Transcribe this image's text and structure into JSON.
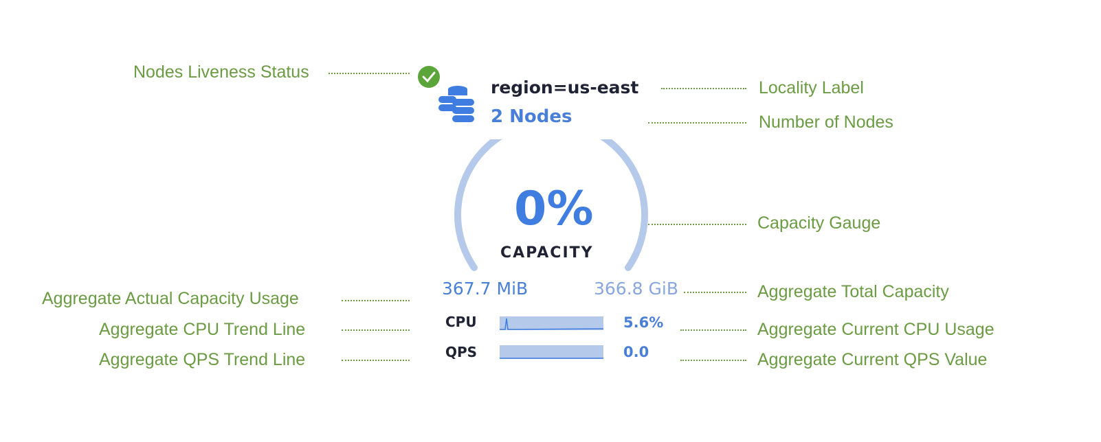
{
  "annotations": {
    "liveness": "Nodes Liveness Status",
    "locality": "Locality Label",
    "num_nodes": "Number of Nodes",
    "gauge": "Capacity Gauge",
    "actual_usage": "Aggregate Actual Capacity Usage",
    "total_capacity": "Aggregate Total Capacity",
    "cpu_trend": "Aggregate CPU Trend Line",
    "cpu_current": "Aggregate Current CPU Usage",
    "qps_trend": "Aggregate QPS Trend Line",
    "qps_current": "Aggregate Current QPS Value"
  },
  "locality": {
    "status_icon": "check-circle-icon",
    "status_color": "#5ba53a",
    "icon": "database-stack-icon",
    "label": "region=us-east",
    "nodes": "2 Nodes"
  },
  "capacity": {
    "percent": "0%",
    "percent_value": 0,
    "label": "CAPACITY",
    "used": "367.7 MiB",
    "total": "366.8 GiB"
  },
  "metrics": {
    "cpu": {
      "label": "CPU",
      "value": "5.6%"
    },
    "qps": {
      "label": "QPS",
      "value": "0.0"
    }
  },
  "colors": {
    "annotation": "#6b9b43",
    "accent": "#3f7de0",
    "gauge_track": "#b5c9ea"
  }
}
